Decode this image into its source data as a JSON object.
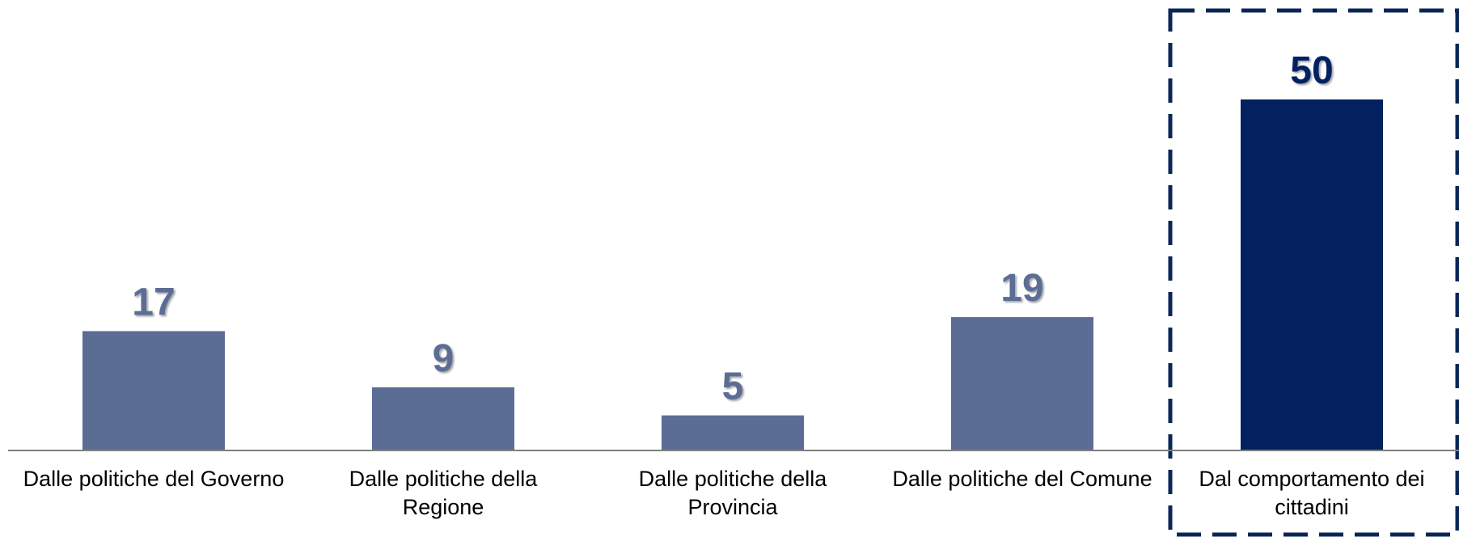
{
  "chart_data": {
    "type": "bar",
    "categories": [
      [
        "Dalle politiche del Governo"
      ],
      [
        "Dalle politiche della",
        "Regione"
      ],
      [
        "Dalle politiche della",
        "Provincia"
      ],
      [
        "Dalle politiche del Comune"
      ],
      [
        "Dal comportamento dei",
        "cittadini"
      ]
    ],
    "values": [
      17,
      9,
      5,
      19,
      50
    ],
    "value_labels": [
      "17",
      "9",
      "5",
      "19",
      "50"
    ],
    "highlight_index": 4,
    "ylim": [
      0,
      50
    ],
    "grid": false,
    "title": "",
    "xlabel": "",
    "ylabel": ""
  },
  "colors": {
    "bar": "#5b6d95",
    "bar_highlight": "#03205f",
    "label": "#5b6d95",
    "label_highlight": "#03205f",
    "axis": "#7f7f7f",
    "highlight_border": "#0a2656",
    "category_text": "#000000"
  }
}
